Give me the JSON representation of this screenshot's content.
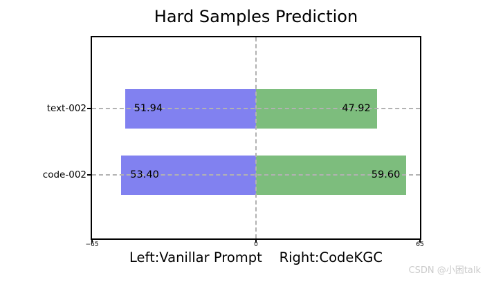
{
  "figure": {
    "title": "Hard Samples Prediction",
    "xlabel": "Left:Vanillar Prompt    Right:CodeKGC",
    "watermark": "CSDN @小困talk"
  },
  "chart_data": {
    "type": "bar",
    "variant": "horizontal-diverging",
    "title": "Hard Samples Prediction",
    "xlabel": "Left:Vanillar Prompt    Right:CodeKGC",
    "categories": [
      "text-002",
      "code-002"
    ],
    "series": [
      {
        "name": "Vanillar Prompt",
        "side": "left",
        "color": "#8181f0",
        "values": [
          51.94,
          53.4
        ],
        "labels": [
          "51.94",
          "53.40"
        ]
      },
      {
        "name": "CodeKGC",
        "side": "right",
        "color": "#7dbd7d",
        "values": [
          47.92,
          59.6
        ],
        "labels": [
          "47.92",
          "59.60"
        ]
      }
    ],
    "xlim": [
      -65,
      65
    ],
    "x_ticks": [
      {
        "label": "−65",
        "pos": -65
      },
      {
        "label": "0",
        "pos": 0
      },
      {
        "label": "65",
        "pos": 65
      }
    ],
    "grid": {
      "style": "dashed",
      "color": "#b2b2b2",
      "lines": "horizontal-through-each-bar-row-and-vertical-zero"
    },
    "frame_color": "#000000",
    "background": "#ffffff",
    "legend": "none"
  }
}
